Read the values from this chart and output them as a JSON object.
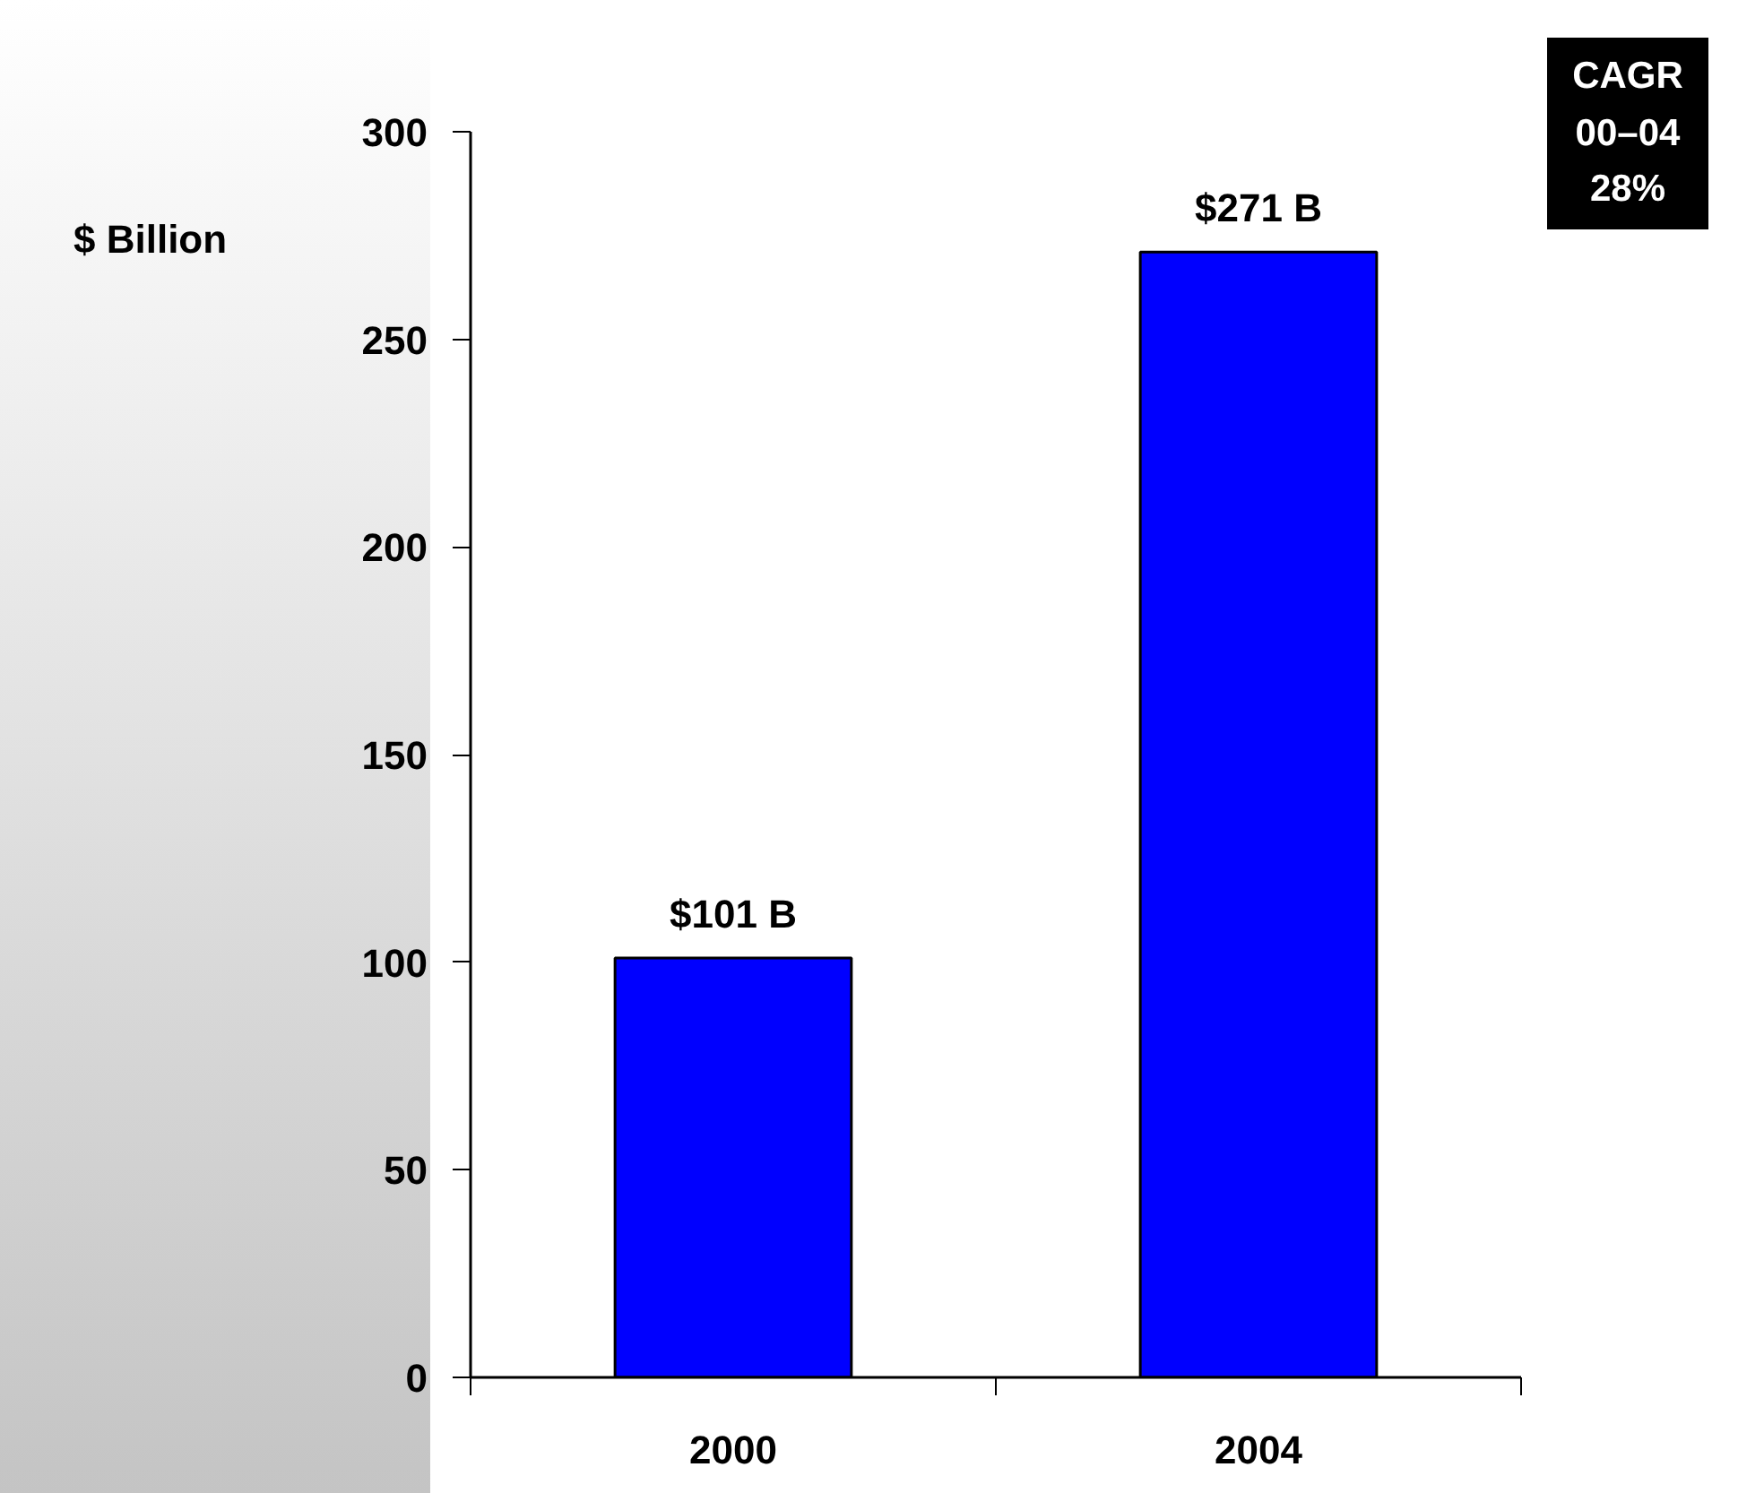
{
  "chart_data": {
    "type": "bar",
    "ylabel": "$ Billion",
    "categories": [
      "2000",
      "2004"
    ],
    "values": [
      101,
      271
    ],
    "color": "#0000ff",
    "value_labels": [
      "$101 B",
      "$271 B"
    ],
    "ylim": [
      0,
      300
    ],
    "yticks": [
      0,
      50,
      100,
      150,
      200,
      250,
      300
    ],
    "grid": false,
    "annotations": [
      "CAGR\n00–04\n28%"
    ]
  }
}
